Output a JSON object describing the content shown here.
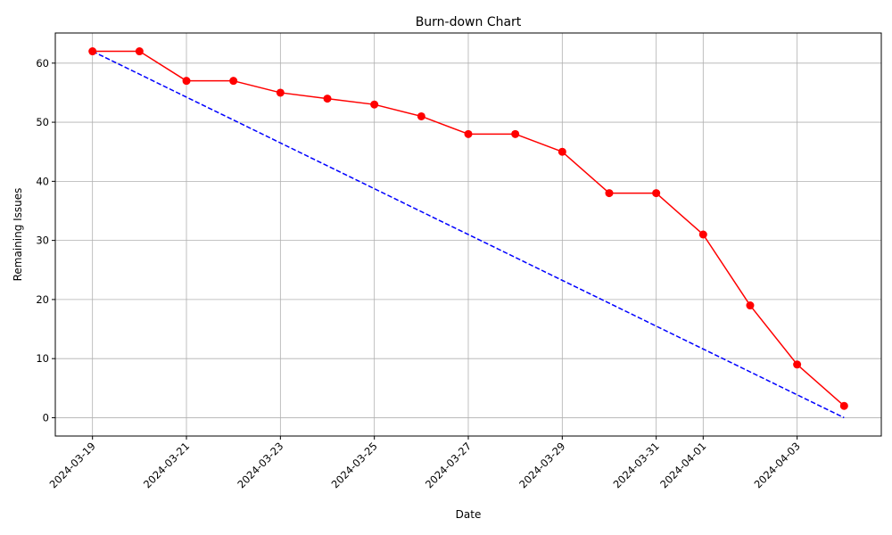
{
  "chart_data": {
    "type": "line",
    "title": "Burn-down Chart",
    "xlabel": "Date",
    "ylabel": "Remaining Issues",
    "grid": true,
    "x_range": [
      "2024-03-18T05:00:00",
      "2024-04-04T19:00:00"
    ],
    "y_range": [
      -3.1,
      65.1
    ],
    "x_ticks": [
      "2024-03-19",
      "2024-03-21",
      "2024-03-23",
      "2024-03-25",
      "2024-03-27",
      "2024-03-29",
      "2024-03-31",
      "2024-04-01",
      "2024-04-03"
    ],
    "y_ticks": [
      0,
      10,
      20,
      30,
      40,
      50,
      60
    ],
    "series": [
      {
        "style": "solid",
        "marker": "circle",
        "color": "#ff0000",
        "x": [
          "2024-03-19",
          "2024-03-20",
          "2024-03-21",
          "2024-03-22",
          "2024-03-23",
          "2024-03-24",
          "2024-03-25",
          "2024-03-26",
          "2024-03-27",
          "2024-03-28",
          "2024-03-29",
          "2024-03-30",
          "2024-03-31",
          "2024-04-01",
          "2024-04-02",
          "2024-04-03",
          "2024-04-04"
        ],
        "values": [
          62,
          62,
          57,
          57,
          55,
          54,
          53,
          51,
          48,
          48,
          45,
          38,
          38,
          31,
          19,
          9,
          2
        ]
      },
      {
        "style": "dashed",
        "marker": "none",
        "color": "#0000ff",
        "x": [
          "2024-03-19",
          "2024-04-04"
        ],
        "values": [
          62,
          0
        ]
      }
    ]
  }
}
